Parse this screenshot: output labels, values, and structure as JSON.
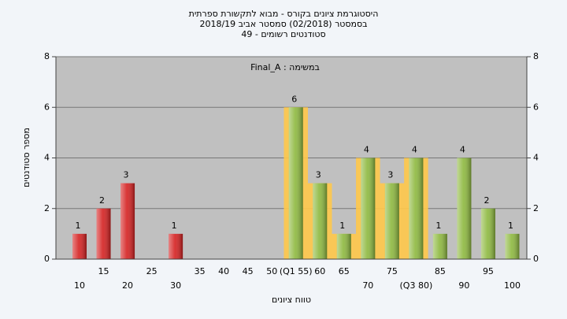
{
  "chart_data": {
    "type": "bar",
    "title": "היסטוגרמת ציונים בקורס - מבוא לתקשורת ספרתית",
    "subtitle": "בסמסטר  (02/2018)  סמסטר אביב 2018/19",
    "note": "סטודנטים רשומים - 49",
    "annotation": "במשימה : Final_A",
    "x_label": "טווח ציונים",
    "y_label": "מספר סטודנטים",
    "categories": [
      "10",
      "15",
      "20",
      "25",
      "30",
      "35",
      "40",
      "45",
      "50",
      "(Q1 55)",
      "60",
      "65",
      "70",
      "75",
      "(Q3 80)",
      "85",
      "90",
      "95",
      "100"
    ],
    "values": [
      1,
      2,
      3,
      0,
      1,
      0,
      0,
      0,
      0,
      6,
      3,
      1,
      4,
      3,
      4,
      1,
      4,
      2,
      1
    ],
    "colors": [
      "#d42020",
      "#d42020",
      "#d42020",
      "#d42020",
      "#d42020",
      "#d42020",
      "#d42020",
      "#d42020",
      "#d42020",
      "#8db83e",
      "#8db83e",
      "#8db83e",
      "#8db83e",
      "#8db83e",
      "#8db83e",
      "#8db83e",
      "#8db83e",
      "#8db83e",
      "#8db83e"
    ],
    "ylim": [
      0,
      8
    ],
    "yticks": [
      0,
      2,
      4,
      6,
      8
    ],
    "grid": true
  }
}
